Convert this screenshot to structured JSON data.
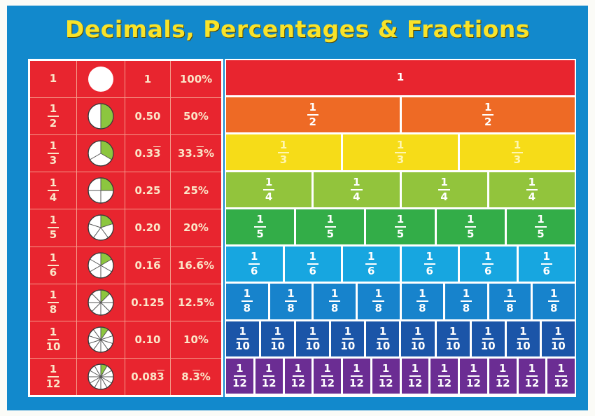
{
  "title": "Decimals, Percentages & Fractions",
  "table": {
    "rows": [
      {
        "num": "1",
        "den": "",
        "parts": 1,
        "decimal": "1",
        "decimal_base": "1",
        "decimal_rep": "",
        "percent_base": "100%",
        "percent_rep": "",
        "percent_tail": ""
      },
      {
        "num": "1",
        "den": "2",
        "parts": 2,
        "decimal_base": "0.50",
        "decimal_rep": "",
        "percent_base": "50%",
        "percent_rep": "",
        "percent_tail": ""
      },
      {
        "num": "1",
        "den": "3",
        "parts": 3,
        "decimal_base": "0.3",
        "decimal_rep": "3",
        "percent_base": "33.",
        "percent_rep": "3",
        "percent_tail": "%"
      },
      {
        "num": "1",
        "den": "4",
        "parts": 4,
        "decimal_base": "0.25",
        "decimal_rep": "",
        "percent_base": "25%",
        "percent_rep": "",
        "percent_tail": ""
      },
      {
        "num": "1",
        "den": "5",
        "parts": 5,
        "decimal_base": "0.20",
        "decimal_rep": "",
        "percent_base": "20%",
        "percent_rep": "",
        "percent_tail": ""
      },
      {
        "num": "1",
        "den": "6",
        "parts": 6,
        "decimal_base": "0.1",
        "decimal_rep": "6",
        "percent_base": "16.",
        "percent_rep": "6",
        "percent_tail": "%"
      },
      {
        "num": "1",
        "den": "8",
        "parts": 8,
        "decimal_base": "0.125",
        "decimal_rep": "",
        "percent_base": "12.5%",
        "percent_rep": "",
        "percent_tail": ""
      },
      {
        "num": "1",
        "den": "10",
        "parts": 10,
        "decimal_base": "0.10",
        "decimal_rep": "",
        "percent_base": "10%",
        "percent_rep": "",
        "percent_tail": ""
      },
      {
        "num": "1",
        "den": "12",
        "parts": 12,
        "decimal_base": "0.08",
        "decimal_rep": "3",
        "percent_base": "8.",
        "percent_rep": "3",
        "percent_tail": "%"
      }
    ]
  },
  "wall": {
    "rows": [
      {
        "count": 1,
        "num": "1",
        "den": "",
        "color": "#e8252f"
      },
      {
        "count": 2,
        "num": "1",
        "den": "2",
        "color": "#ee6a25"
      },
      {
        "count": 3,
        "num": "1",
        "den": "3",
        "color": "#f6dc18"
      },
      {
        "count": 4,
        "num": "1",
        "den": "4",
        "color": "#92c43c"
      },
      {
        "count": 5,
        "num": "1",
        "den": "5",
        "color": "#33ad48"
      },
      {
        "count": 6,
        "num": "1",
        "den": "6",
        "color": "#17a6e0"
      },
      {
        "count": 8,
        "num": "1",
        "den": "8",
        "color": "#1783cc"
      },
      {
        "count": 10,
        "num": "1",
        "den": "10",
        "color": "#1b55a8"
      },
      {
        "count": 12,
        "num": "1",
        "den": "12",
        "color": "#6b2d93"
      }
    ]
  },
  "colors": {
    "background": "#1289cc",
    "title": "#f8e32a",
    "table_red": "#e8252f",
    "pie_green": "#8cc63f"
  }
}
